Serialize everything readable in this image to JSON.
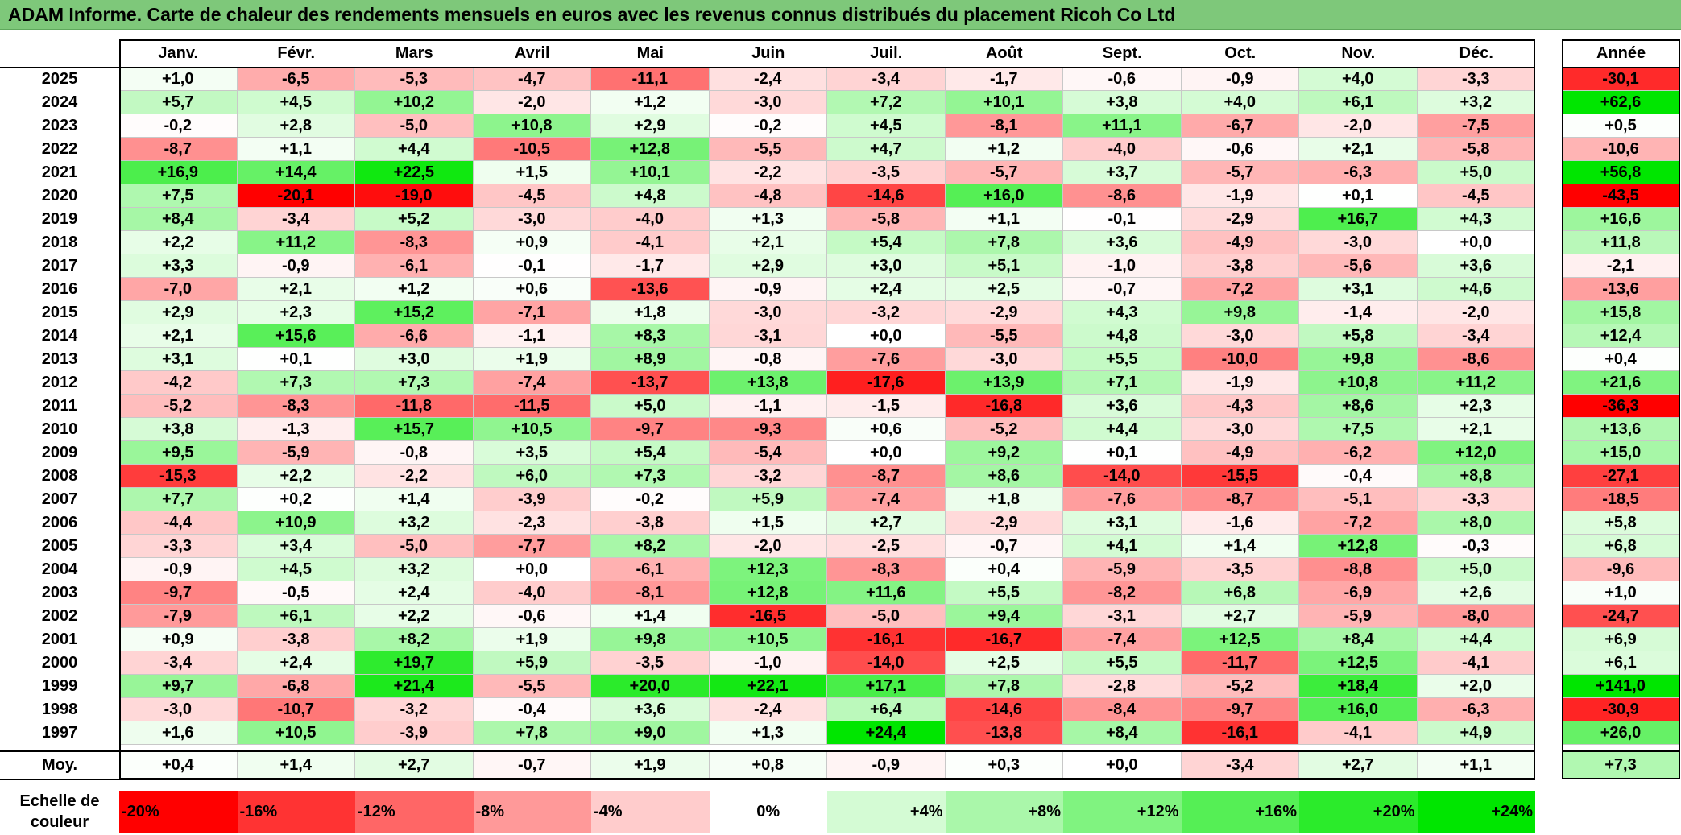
{
  "title": "ADAM Informe. Carte de chaleur des rendements mensuels en euros avec les revenus connus distribués du placement Ricoh Co Ltd",
  "chart_data": {
    "type": "heatmap",
    "columns": [
      "Janv.",
      "Févr.",
      "Mars",
      "Avril",
      "Mai",
      "Juin",
      "Juil.",
      "Août",
      "Sept.",
      "Oct.",
      "Nov.",
      "Déc."
    ],
    "annual_header": "Année",
    "rows": [
      {
        "year": "2025",
        "months": [
          "+1,0",
          "-6,5",
          "-5,3",
          "-4,7",
          "-11,1",
          "-2,4",
          "-3,4",
          "-1,7",
          "-0,6",
          "-0,9",
          "+4,0",
          "-3,3"
        ],
        "annual": "-30,1"
      },
      {
        "year": "2024",
        "months": [
          "+5,7",
          "+4,5",
          "+10,2",
          "-2,0",
          "+1,2",
          "-3,0",
          "+7,2",
          "+10,1",
          "+3,8",
          "+4,0",
          "+6,1",
          "+3,2"
        ],
        "annual": "+62,6"
      },
      {
        "year": "2023",
        "months": [
          "-0,2",
          "+2,8",
          "-5,0",
          "+10,8",
          "+2,9",
          "-0,2",
          "+4,5",
          "-8,1",
          "+11,1",
          "-6,7",
          "-2,0",
          "-7,5"
        ],
        "annual": "+0,5"
      },
      {
        "year": "2022",
        "months": [
          "-8,7",
          "+1,1",
          "+4,4",
          "-10,5",
          "+12,8",
          "-5,5",
          "+4,7",
          "+1,2",
          "-4,0",
          "-0,6",
          "+2,1",
          "-5,8"
        ],
        "annual": "-10,6"
      },
      {
        "year": "2021",
        "months": [
          "+16,9",
          "+14,4",
          "+22,5",
          "+1,5",
          "+10,1",
          "-2,2",
          "-3,5",
          "-5,7",
          "+3,7",
          "-5,7",
          "-6,3",
          "+5,0"
        ],
        "annual": "+56,8"
      },
      {
        "year": "2020",
        "months": [
          "+7,5",
          "-20,1",
          "-19,0",
          "-4,5",
          "+4,8",
          "-4,8",
          "-14,6",
          "+16,0",
          "-8,6",
          "-1,9",
          "+0,1",
          "-4,5"
        ],
        "annual": "-43,5"
      },
      {
        "year": "2019",
        "months": [
          "+8,4",
          "-3,4",
          "+5,2",
          "-3,0",
          "-4,0",
          "+1,3",
          "-5,8",
          "+1,1",
          "-0,1",
          "-2,9",
          "+16,7",
          "+4,3"
        ],
        "annual": "+16,6"
      },
      {
        "year": "2018",
        "months": [
          "+2,2",
          "+11,2",
          "-8,3",
          "+0,9",
          "-4,1",
          "+2,1",
          "+5,4",
          "+7,8",
          "+3,6",
          "-4,9",
          "-3,0",
          "+0,0"
        ],
        "annual": "+11,8"
      },
      {
        "year": "2017",
        "months": [
          "+3,3",
          "-0,9",
          "-6,1",
          "-0,1",
          "-1,7",
          "+2,9",
          "+3,0",
          "+5,1",
          "-1,0",
          "-3,8",
          "-5,6",
          "+3,6"
        ],
        "annual": "-2,1"
      },
      {
        "year": "2016",
        "months": [
          "-7,0",
          "+2,1",
          "+1,2",
          "+0,6",
          "-13,6",
          "-0,9",
          "+2,4",
          "+2,5",
          "-0,7",
          "-7,2",
          "+3,1",
          "+4,6"
        ],
        "annual": "-13,6"
      },
      {
        "year": "2015",
        "months": [
          "+2,9",
          "+2,3",
          "+15,2",
          "-7,1",
          "+1,8",
          "-3,0",
          "-3,2",
          "-2,9",
          "+4,3",
          "+9,8",
          "-1,4",
          "-2,0"
        ],
        "annual": "+15,8"
      },
      {
        "year": "2014",
        "months": [
          "+2,1",
          "+15,6",
          "-6,6",
          "-1,1",
          "+8,3",
          "-3,1",
          "+0,0",
          "-5,5",
          "+4,8",
          "-3,0",
          "+5,8",
          "-3,4"
        ],
        "annual": "+12,4"
      },
      {
        "year": "2013",
        "months": [
          "+3,1",
          "+0,1",
          "+3,0",
          "+1,9",
          "+8,9",
          "-0,8",
          "-7,6",
          "-3,0",
          "+5,5",
          "-10,0",
          "+9,8",
          "-8,6"
        ],
        "annual": "+0,4"
      },
      {
        "year": "2012",
        "months": [
          "-4,2",
          "+7,3",
          "+7,3",
          "-7,4",
          "-13,7",
          "+13,8",
          "-17,6",
          "+13,9",
          "+7,1",
          "-1,9",
          "+10,8",
          "+11,2"
        ],
        "annual": "+21,6"
      },
      {
        "year": "2011",
        "months": [
          "-5,2",
          "-8,3",
          "-11,8",
          "-11,5",
          "+5,0",
          "-1,1",
          "-1,5",
          "-16,8",
          "+3,6",
          "-4,3",
          "+8,6",
          "+2,3"
        ],
        "annual": "-36,3"
      },
      {
        "year": "2010",
        "months": [
          "+3,8",
          "-1,3",
          "+15,7",
          "+10,5",
          "-9,7",
          "-9,3",
          "+0,6",
          "-5,2",
          "+4,4",
          "-3,0",
          "+7,5",
          "+2,1"
        ],
        "annual": "+13,6"
      },
      {
        "year": "2009",
        "months": [
          "+9,5",
          "-5,9",
          "-0,8",
          "+3,5",
          "+5,4",
          "-5,4",
          "+0,0",
          "+9,2",
          "+0,1",
          "-4,9",
          "-6,2",
          "+12,0"
        ],
        "annual": "+15,0"
      },
      {
        "year": "2008",
        "months": [
          "-15,3",
          "+2,2",
          "-2,2",
          "+6,0",
          "+7,3",
          "-3,2",
          "-8,7",
          "+8,6",
          "-14,0",
          "-15,5",
          "-0,4",
          "+8,8"
        ],
        "annual": "-27,1"
      },
      {
        "year": "2007",
        "months": [
          "+7,7",
          "+0,2",
          "+1,4",
          "-3,9",
          "-0,2",
          "+5,9",
          "-7,4",
          "+1,8",
          "-7,6",
          "-8,7",
          "-5,1",
          "-3,3"
        ],
        "annual": "-18,5"
      },
      {
        "year": "2006",
        "months": [
          "-4,4",
          "+10,9",
          "+3,2",
          "-2,3",
          "-3,8",
          "+1,5",
          "+2,7",
          "-2,9",
          "+3,1",
          "-1,6",
          "-7,2",
          "+8,0"
        ],
        "annual": "+5,8"
      },
      {
        "year": "2005",
        "months": [
          "-3,3",
          "+3,4",
          "-5,0",
          "-7,7",
          "+8,2",
          "-2,0",
          "-2,5",
          "-0,7",
          "+4,1",
          "+1,4",
          "+12,8",
          "-0,3"
        ],
        "annual": "+6,8"
      },
      {
        "year": "2004",
        "months": [
          "-0,9",
          "+4,5",
          "+3,2",
          "+0,0",
          "-6,1",
          "+12,3",
          "-8,3",
          "+0,4",
          "-5,9",
          "-3,5",
          "-8,8",
          "+5,0"
        ],
        "annual": "-9,6"
      },
      {
        "year": "2003",
        "months": [
          "-9,7",
          "-0,5",
          "+2,4",
          "-4,0",
          "-8,1",
          "+12,8",
          "+11,6",
          "+5,5",
          "-8,2",
          "+6,8",
          "-6,9",
          "+2,6"
        ],
        "annual": "+1,0"
      },
      {
        "year": "2002",
        "months": [
          "-7,9",
          "+6,1",
          "+2,2",
          "-0,6",
          "+1,4",
          "-16,5",
          "-5,0",
          "+9,4",
          "-3,1",
          "+2,7",
          "-5,9",
          "-8,0"
        ],
        "annual": "-24,7"
      },
      {
        "year": "2001",
        "months": [
          "+0,9",
          "-3,8",
          "+8,2",
          "+1,9",
          "+9,8",
          "+10,5",
          "-16,1",
          "-16,7",
          "-7,4",
          "+12,5",
          "+8,4",
          "+4,4"
        ],
        "annual": "+6,9"
      },
      {
        "year": "2000",
        "months": [
          "-3,4",
          "+2,4",
          "+19,7",
          "+5,9",
          "-3,5",
          "-1,0",
          "-14,0",
          "+2,5",
          "+5,5",
          "-11,7",
          "+12,5",
          "-4,1"
        ],
        "annual": "+6,1"
      },
      {
        "year": "1999",
        "months": [
          "+9,7",
          "-6,8",
          "+21,4",
          "-5,5",
          "+20,0",
          "+22,1",
          "+17,1",
          "+7,8",
          "-2,8",
          "-5,2",
          "+18,4",
          "+2,0"
        ],
        "annual": "+141,0"
      },
      {
        "year": "1998",
        "months": [
          "-3,0",
          "-10,7",
          "-3,2",
          "-0,4",
          "+3,6",
          "-2,4",
          "+6,4",
          "-14,6",
          "-8,4",
          "-9,7",
          "+16,0",
          "-6,3"
        ],
        "annual": "-30,9"
      },
      {
        "year": "1997",
        "months": [
          "+1,6",
          "+10,5",
          "-3,9",
          "+7,8",
          "+9,0",
          "+1,3",
          "+24,4",
          "-13,8",
          "+8,4",
          "-16,1",
          "-4,1",
          "+4,9"
        ],
        "annual": "+26,0"
      }
    ],
    "average": {
      "label": "Moy.",
      "months": [
        "+0,4",
        "+1,4",
        "+2,7",
        "-0,7",
        "+1,9",
        "+0,8",
        "-0,9",
        "+0,3",
        "+0,0",
        "-3,4",
        "+2,7",
        "+1,1"
      ],
      "annual": "+7,3"
    },
    "color_scale": {
      "label": "Echelle de couleur",
      "stops": [
        {
          "label": "-20%",
          "value": -20,
          "color": "#ff0000"
        },
        {
          "label": "-16%",
          "value": -16,
          "color": "#ff3333"
        },
        {
          "label": "-12%",
          "value": -12,
          "color": "#ff6666"
        },
        {
          "label": "-8%",
          "value": -8,
          "color": "#ff9999"
        },
        {
          "label": "-4%",
          "value": -4,
          "color": "#ffcccc"
        },
        {
          "label": "0%",
          "value": 0,
          "color": "#ffffff"
        },
        {
          "label": "+4%",
          "value": 4,
          "color": "#d4fbd4"
        },
        {
          "label": "+8%",
          "value": 8,
          "color": "#aaf7aa"
        },
        {
          "label": "+12%",
          "value": 12,
          "color": "#80f380"
        },
        {
          "label": "+16%",
          "value": 16,
          "color": "#55ef55"
        },
        {
          "label": "+20%",
          "value": 20,
          "color": "#2beb2b"
        },
        {
          "label": "+24%",
          "value": 24,
          "color": "#00e600"
        }
      ]
    }
  }
}
